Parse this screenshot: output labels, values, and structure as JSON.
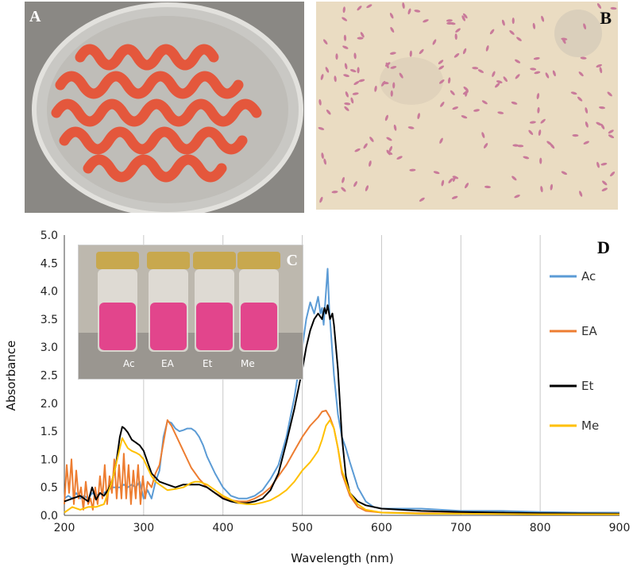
{
  "panels": {
    "a": {
      "letter": "A"
    },
    "b": {
      "letter": "B"
    },
    "c": {
      "letter": "C",
      "vial_labels": [
        "Ac",
        "EA",
        "Et",
        "Me"
      ]
    },
    "d": {
      "letter": "D"
    }
  },
  "chart_data": {
    "type": "line",
    "title": "",
    "xlabel": "Wavelength (nm)",
    "ylabel": "Absorbance",
    "xlim": [
      200,
      900
    ],
    "ylim": [
      0,
      5.0
    ],
    "x_ticks": [
      "200",
      "300",
      "400",
      "500",
      "600",
      "700",
      "800",
      "900"
    ],
    "y_ticks": [
      "0.0",
      "0.5",
      "1.0",
      "1.5",
      "2.0",
      "2.5",
      "3.0",
      "3.5",
      "4.0",
      "4.5",
      "5.0"
    ],
    "grid": "vertical",
    "legend_position": "right",
    "series": [
      {
        "name": "Ac",
        "color": "#5b9bd5",
        "x": [
          200,
          205,
          210,
          215,
          220,
          225,
          230,
          235,
          240,
          245,
          250,
          255,
          260,
          265,
          270,
          275,
          280,
          285,
          290,
          295,
          300,
          305,
          310,
          315,
          320,
          325,
          330,
          335,
          340,
          345,
          350,
          355,
          360,
          365,
          370,
          375,
          380,
          390,
          400,
          410,
          420,
          430,
          440,
          450,
          460,
          470,
          480,
          490,
          500,
          505,
          510,
          515,
          520,
          523,
          525,
          527,
          530,
          532,
          534,
          536,
          540,
          545,
          550,
          555,
          560,
          570,
          580,
          590,
          600,
          620,
          650,
          700,
          750,
          800,
          850,
          900
        ],
        "y": [
          0.3,
          0.35,
          0.3,
          0.4,
          0.3,
          0.35,
          0.3,
          0.4,
          0.35,
          0.4,
          0.4,
          0.45,
          0.5,
          0.5,
          0.5,
          0.55,
          0.5,
          0.55,
          0.5,
          0.6,
          0.3,
          0.45,
          0.3,
          0.6,
          0.8,
          1.4,
          1.68,
          1.65,
          1.55,
          1.5,
          1.52,
          1.55,
          1.55,
          1.5,
          1.4,
          1.25,
          1.05,
          0.75,
          0.5,
          0.35,
          0.3,
          0.3,
          0.35,
          0.45,
          0.65,
          0.9,
          1.4,
          2.1,
          3.0,
          3.5,
          3.8,
          3.6,
          3.9,
          3.6,
          3.7,
          3.4,
          4.0,
          4.4,
          3.7,
          3.3,
          2.5,
          1.8,
          1.4,
          1.2,
          0.95,
          0.5,
          0.25,
          0.15,
          0.12,
          0.12,
          0.12,
          0.08,
          0.08,
          0.06,
          0.05,
          0.05
        ]
      },
      {
        "name": "EA",
        "color": "#ed7d31",
        "x": [
          200,
          203,
          206,
          209,
          212,
          215,
          218,
          221,
          224,
          227,
          230,
          233,
          236,
          239,
          242,
          245,
          248,
          251,
          254,
          257,
          260,
          263,
          266,
          269,
          272,
          275,
          278,
          281,
          284,
          287,
          290,
          293,
          296,
          299,
          302,
          305,
          310,
          315,
          320,
          325,
          330,
          335,
          340,
          350,
          360,
          370,
          380,
          390,
          400,
          410,
          420,
          430,
          440,
          450,
          460,
          470,
          480,
          490,
          500,
          510,
          520,
          525,
          530,
          535,
          540,
          545,
          550,
          560,
          570,
          580,
          600,
          650,
          700,
          800,
          900
        ],
        "y": [
          0.2,
          0.9,
          0.4,
          1.0,
          0.2,
          0.8,
          0.3,
          0.5,
          0.1,
          0.6,
          0.2,
          0.3,
          0.1,
          0.5,
          0.2,
          0.7,
          0.3,
          0.9,
          0.2,
          0.7,
          0.4,
          1.0,
          0.3,
          0.9,
          0.3,
          1.1,
          0.3,
          0.9,
          0.2,
          0.8,
          0.3,
          0.9,
          0.2,
          0.7,
          0.3,
          0.6,
          0.5,
          0.75,
          0.9,
          1.3,
          1.7,
          1.6,
          1.45,
          1.15,
          0.85,
          0.65,
          0.5,
          0.4,
          0.32,
          0.27,
          0.25,
          0.25,
          0.3,
          0.38,
          0.5,
          0.7,
          0.9,
          1.15,
          1.4,
          1.6,
          1.75,
          1.85,
          1.87,
          1.75,
          1.55,
          1.2,
          0.75,
          0.35,
          0.15,
          0.08,
          0.05,
          0.04,
          0.04,
          0.03,
          0.03
        ]
      },
      {
        "name": "Et",
        "color": "#000000",
        "x": [
          200,
          210,
          220,
          230,
          235,
          240,
          245,
          250,
          255,
          260,
          265,
          270,
          273,
          276,
          280,
          285,
          290,
          295,
          300,
          305,
          310,
          320,
          330,
          340,
          350,
          360,
          370,
          380,
          390,
          400,
          410,
          420,
          430,
          440,
          450,
          460,
          470,
          480,
          490,
          500,
          505,
          510,
          515,
          520,
          525,
          528,
          530,
          532,
          535,
          538,
          540,
          545,
          550,
          555,
          560,
          570,
          580,
          600,
          650,
          700,
          800,
          900
        ],
        "y": [
          0.25,
          0.3,
          0.35,
          0.25,
          0.5,
          0.28,
          0.4,
          0.35,
          0.45,
          0.6,
          0.9,
          1.4,
          1.58,
          1.55,
          1.48,
          1.35,
          1.3,
          1.25,
          1.15,
          0.95,
          0.75,
          0.6,
          0.55,
          0.5,
          0.55,
          0.55,
          0.55,
          0.5,
          0.4,
          0.3,
          0.25,
          0.22,
          0.22,
          0.25,
          0.3,
          0.45,
          0.75,
          1.3,
          1.9,
          2.6,
          3.0,
          3.3,
          3.5,
          3.6,
          3.5,
          3.7,
          3.6,
          3.75,
          3.5,
          3.6,
          3.4,
          2.6,
          1.4,
          0.7,
          0.4,
          0.25,
          0.18,
          0.12,
          0.08,
          0.06,
          0.04,
          0.03
        ]
      },
      {
        "name": "Me",
        "color": "#ffc000",
        "x": [
          200,
          210,
          220,
          230,
          240,
          250,
          255,
          260,
          265,
          270,
          273,
          276,
          280,
          285,
          290,
          295,
          300,
          305,
          310,
          315,
          320,
          330,
          340,
          350,
          360,
          365,
          370,
          380,
          390,
          400,
          410,
          420,
          430,
          440,
          450,
          460,
          470,
          480,
          490,
          500,
          510,
          515,
          520,
          525,
          530,
          535,
          540,
          545,
          550,
          560,
          570,
          580,
          600,
          650,
          700,
          800,
          900
        ],
        "y": [
          0.05,
          0.15,
          0.1,
          0.15,
          0.15,
          0.2,
          0.4,
          0.6,
          0.9,
          1.2,
          1.38,
          1.3,
          1.2,
          1.15,
          1.12,
          1.08,
          1.0,
          0.85,
          0.7,
          0.6,
          0.55,
          0.45,
          0.47,
          0.5,
          0.58,
          0.6,
          0.6,
          0.55,
          0.45,
          0.35,
          0.28,
          0.22,
          0.2,
          0.2,
          0.23,
          0.27,
          0.35,
          0.45,
          0.6,
          0.8,
          0.95,
          1.05,
          1.15,
          1.35,
          1.6,
          1.7,
          1.55,
          1.2,
          0.8,
          0.4,
          0.2,
          0.1,
          0.05,
          0.03,
          0.03,
          0.02,
          0.02
        ]
      }
    ]
  }
}
